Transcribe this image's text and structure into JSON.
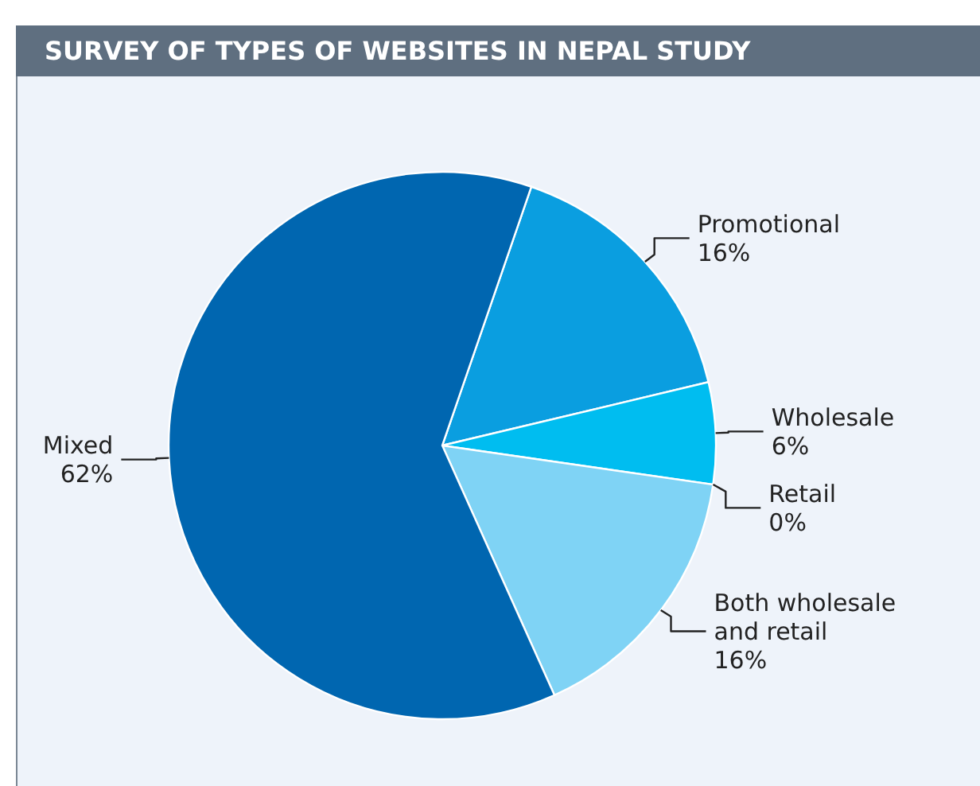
{
  "chart_data": {
    "type": "pie",
    "title": "SURVEY OF TYPES OF WEBSITES IN NEPAL STUDY",
    "categories": [
      "Promotional",
      "Wholesale",
      "Retail",
      "Both wholesale and retail",
      "Mixed"
    ],
    "values": [
      16,
      6,
      0,
      16,
      62
    ],
    "colors": [
      "#0a9ee0",
      "#00bdf0",
      null,
      "#7fd3f5",
      "#0066b0"
    ],
    "value_labels": [
      "16%",
      "6%",
      "0%",
      "16%",
      "62%"
    ]
  }
}
